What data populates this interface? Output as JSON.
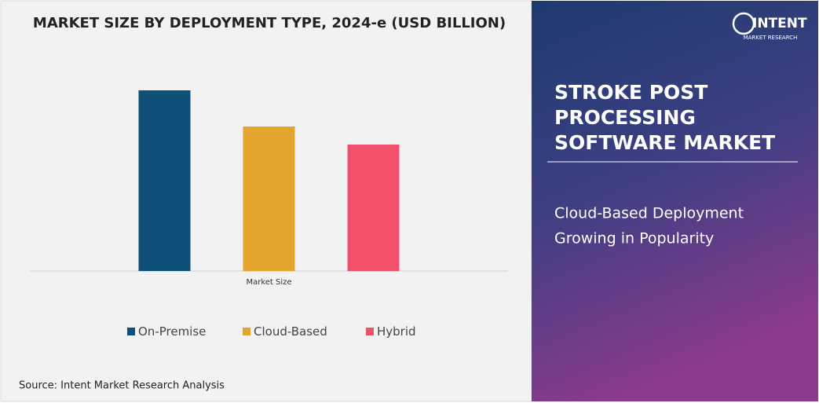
{
  "chart_data": {
    "type": "bar",
    "title": "MARKET SIZE BY DEPLOYMENT TYPE, 2024-e (USD BILLION)",
    "categories": [
      "Market Size"
    ],
    "series": [
      {
        "name": "On-Premise",
        "color": "#0e5078",
        "values": [
          2.3
        ]
      },
      {
        "name": "Cloud-Based",
        "color": "#e3a52e",
        "values": [
          1.84
        ]
      },
      {
        "name": "Hybrid",
        "color": "#f0506a",
        "values": [
          1.61
        ]
      }
    ],
    "ylim": [
      0,
      2.6
    ],
    "legend": "bottom"
  },
  "source": "Source: Intent Market Research Analysis",
  "panel": {
    "title_lines": [
      "STROKE POST",
      "PROCESSING",
      "SOFTWARE MARKET"
    ],
    "subtitle_lines": [
      "Cloud-Based Deployment",
      "Growing in Popularity"
    ]
  },
  "logo": {
    "name": "INTENT",
    "tagline": "MARKET RESEARCH"
  }
}
